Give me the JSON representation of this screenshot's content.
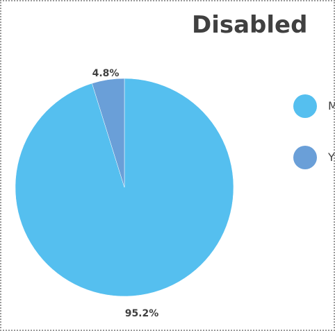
{
  "chart_data": {
    "type": "pie",
    "title": "Disabled",
    "slices": [
      {
        "label": "M",
        "value": 95.2,
        "display": "95.2%",
        "color": "#55BFEF"
      },
      {
        "label": "Y",
        "value": 4.8,
        "display": "4.8%",
        "color": "#6A9FD8"
      }
    ],
    "legend_position": "right"
  }
}
